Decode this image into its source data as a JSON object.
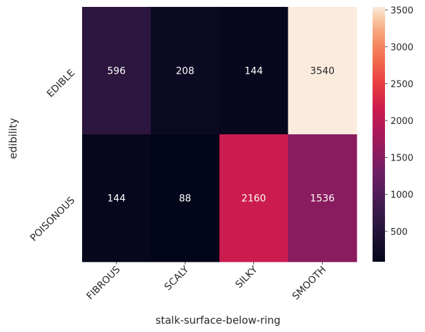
{
  "chart_data": {
    "type": "heatmap",
    "xlabel": "stalk-surface-below-ring",
    "ylabel": "edibility",
    "x_categories": [
      "FIBROUS",
      "SCALY",
      "SILKY",
      "SMOOTH"
    ],
    "y_categories": [
      "EDIBLE",
      "POISONOUS"
    ],
    "values": [
      [
        596,
        208,
        144,
        3540
      ],
      [
        144,
        88,
        2160,
        1536
      ]
    ],
    "colorbar": {
      "min": 88,
      "max": 3540,
      "ticks": [
        500,
        1000,
        1500,
        2000,
        2500,
        3000,
        3500
      ],
      "colormap": "rocket"
    }
  }
}
